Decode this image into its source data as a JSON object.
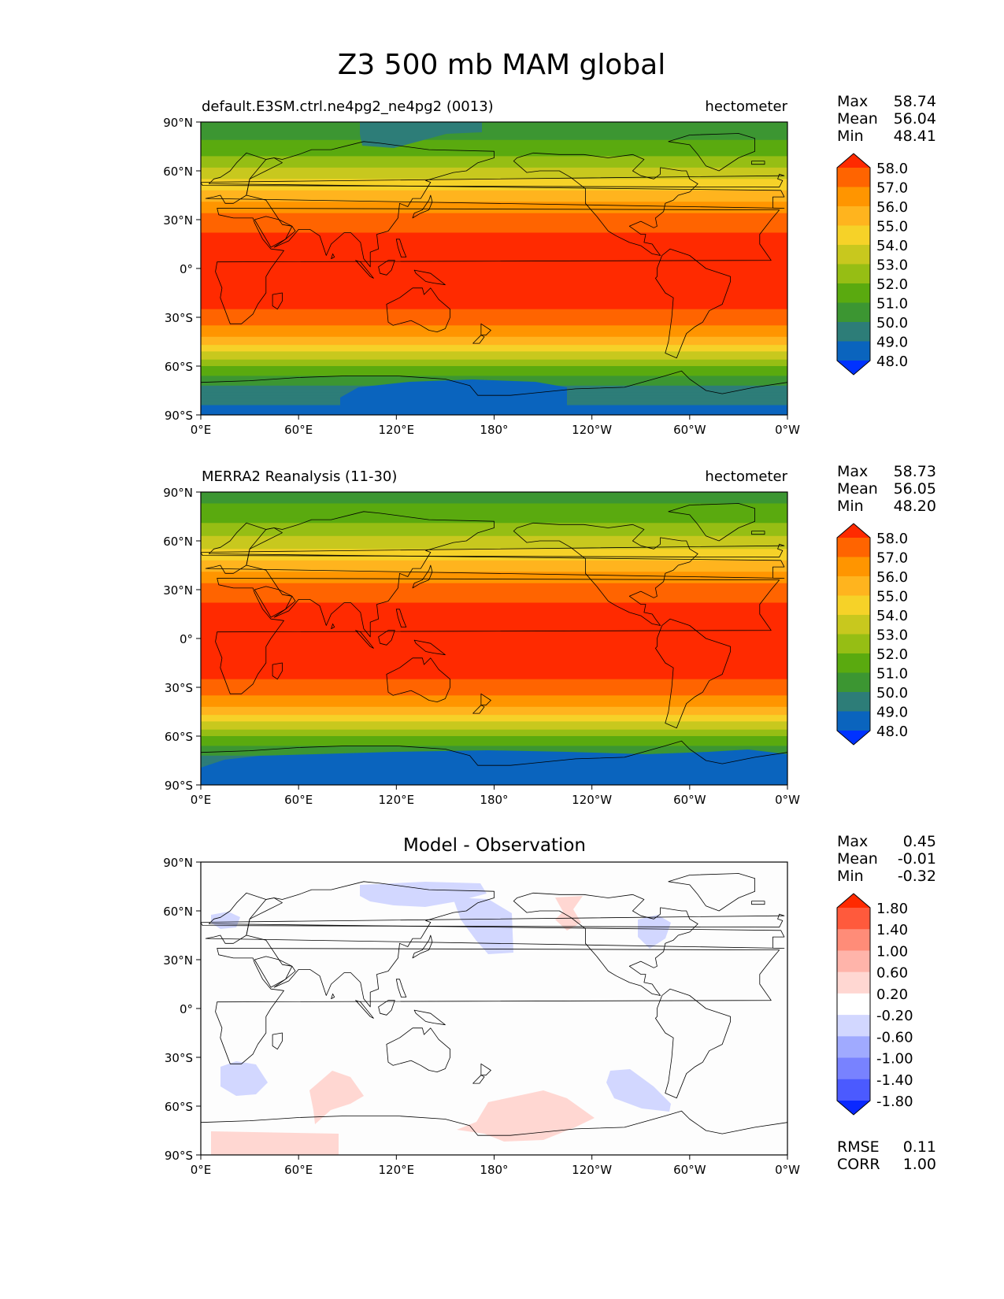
{
  "figure": {
    "title": "Z3 500 mb MAM global"
  },
  "axes": {
    "lat_ticks": [
      "90°N",
      "60°N",
      "30°N",
      "0°",
      "30°S",
      "60°S",
      "90°S"
    ],
    "lon_ticks": [
      "0°E",
      "60°E",
      "120°E",
      "180°",
      "120°W",
      "60°W",
      "0°W"
    ]
  },
  "panels": [
    {
      "left_title": "default.E3SM.ctrl.ne4pg2_ne4pg2 (0013)",
      "center_title": "",
      "right_title": "hectometer",
      "stats": [
        {
          "label": "Max",
          "value": "58.74"
        },
        {
          "label": "Mean",
          "value": "56.04"
        },
        {
          "label": "Min",
          "value": "48.41"
        }
      ]
    },
    {
      "left_title": "MERRA2 Reanalysis (11-30)",
      "center_title": "",
      "right_title": "hectometer",
      "stats": [
        {
          "label": "Max",
          "value": "58.73"
        },
        {
          "label": "Mean",
          "value": "56.05"
        },
        {
          "label": "Min",
          "value": "48.20"
        }
      ]
    },
    {
      "left_title": "",
      "center_title": "Model - Observation",
      "right_title": "",
      "stats": [
        {
          "label": "Max",
          "value": "0.45"
        },
        {
          "label": "Mean",
          "value": "-0.01"
        },
        {
          "label": "Min",
          "value": "-0.32"
        }
      ],
      "extra_stats": [
        {
          "label": "RMSE",
          "value": "0.11"
        },
        {
          "label": "CORR",
          "value": "1.00"
        }
      ]
    }
  ],
  "colorbars": {
    "field": {
      "tick_labels": [
        "58.0",
        "57.0",
        "56.0",
        "55.0",
        "54.0",
        "53.0",
        "52.0",
        "51.0",
        "50.0",
        "49.0",
        "48.0"
      ],
      "colors_top_to_bottom": [
        "#ff2a00",
        "#ff6400",
        "#ff9500",
        "#ffb41e",
        "#f6d228",
        "#c8c81e",
        "#96be14",
        "#5aaa0f",
        "#3c9632",
        "#2d7d78",
        "#0a64be",
        "#0032ff"
      ]
    },
    "diff": {
      "tick_labels": [
        "1.80",
        "1.40",
        "1.00",
        "0.60",
        "0.20",
        "-0.20",
        "-0.60",
        "-1.00",
        "-1.40",
        "-1.80"
      ],
      "colors_top_to_bottom": [
        "#ff2a00",
        "#ff5a3c",
        "#ff8c78",
        "#ffb4aa",
        "#ffd7d2",
        "#ffffff",
        "#d2d7ff",
        "#a0aaff",
        "#7882ff",
        "#4b5aff",
        "#0a28ff"
      ]
    }
  },
  "chart_data": [
    {
      "type": "heatmap",
      "title": "default.E3SM.ctrl.ne4pg2_ne4pg2 (0013)",
      "units": "hectometer",
      "xlim": [
        0,
        360
      ],
      "ylim": [
        -90,
        90
      ],
      "zonal_mean_profile": {
        "lat": [
          90,
          75,
          60,
          45,
          30,
          15,
          0,
          -15,
          -30,
          -45,
          -60,
          -75,
          -90
        ],
        "value": [
          50.2,
          51.3,
          53.2,
          55.5,
          57.5,
          58.4,
          58.5,
          58.4,
          57.8,
          55.5,
          52.0,
          49.5,
          48.7
        ]
      },
      "levels": [
        48,
        49,
        50,
        51,
        52,
        53,
        54,
        55,
        56,
        57,
        58
      ],
      "stats": {
        "max": 58.74,
        "mean": 56.04,
        "min": 48.41
      }
    },
    {
      "type": "heatmap",
      "title": "MERRA2 Reanalysis (11-30)",
      "units": "hectometer",
      "xlim": [
        0,
        360
      ],
      "ylim": [
        -90,
        90
      ],
      "zonal_mean_profile": {
        "lat": [
          90,
          75,
          60,
          45,
          30,
          15,
          0,
          -15,
          -30,
          -45,
          -60,
          -75,
          -90
        ],
        "value": [
          50.5,
          51.5,
          53.3,
          55.5,
          57.5,
          58.4,
          58.5,
          58.4,
          57.8,
          55.5,
          52.0,
          49.5,
          48.6
        ]
      },
      "levels": [
        48,
        49,
        50,
        51,
        52,
        53,
        54,
        55,
        56,
        57,
        58
      ],
      "stats": {
        "max": 58.73,
        "mean": 56.05,
        "min": 48.2
      }
    },
    {
      "type": "heatmap",
      "title": "Model - Observation",
      "xlim": [
        0,
        360
      ],
      "ylim": [
        -90,
        90
      ],
      "levels": [
        -1.8,
        -1.4,
        -1.0,
        -0.6,
        -0.2,
        0.2,
        0.6,
        1.0,
        1.4,
        1.8
      ],
      "stats": {
        "max": 0.45,
        "mean": -0.01,
        "min": -0.32,
        "rmse": 0.11,
        "corr": 1.0
      }
    }
  ]
}
